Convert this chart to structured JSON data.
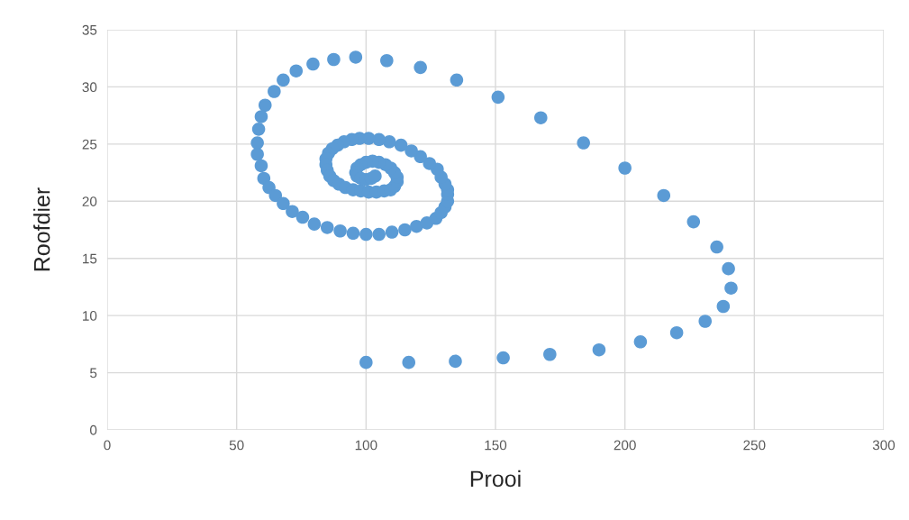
{
  "chart_data": {
    "type": "scatter",
    "xlabel": "Prooi",
    "ylabel": "Roofdier",
    "xlim": [
      0,
      300
    ],
    "xticks": [
      0,
      50,
      100,
      150,
      200,
      250,
      300
    ],
    "ylim": [
      0,
      35
    ],
    "yticks": [
      0,
      5,
      10,
      15,
      20,
      25,
      30,
      35
    ],
    "grid": true,
    "marker": "circle",
    "series": [
      {
        "color": "#5b9bd5",
        "x": [
          100,
          116.5,
          134.5,
          153,
          171,
          190,
          206,
          220,
          231,
          238,
          241,
          240,
          235.5,
          226.5,
          215,
          200,
          184,
          167.5,
          151,
          135,
          121,
          108,
          96,
          87.5,
          79.5,
          73,
          68,
          64.5,
          61,
          59.5,
          58.5,
          58,
          58,
          59.5,
          60.5,
          62.5,
          65,
          68,
          71.5,
          75.5,
          80,
          85,
          90,
          95,
          100,
          105,
          110,
          115,
          119.5,
          123.5,
          127,
          129,
          130.5,
          131.5,
          131.5,
          131.5,
          130.5,
          129,
          127.5,
          124.5,
          121,
          117.5,
          113.5,
          109,
          105,
          101,
          97.5,
          94.5,
          91.5,
          89,
          87,
          85.5,
          84.5,
          84.5,
          85,
          86,
          87.5,
          89.5,
          92,
          95,
          98,
          101,
          104,
          107,
          109.5,
          111,
          112,
          112,
          111,
          109.5,
          107.5,
          105,
          102.5,
          100,
          98,
          96.5,
          96,
          96.5,
          98,
          100,
          102,
          103.5
        ],
        "values": [
          5.9,
          5.9,
          6.0,
          6.3,
          6.6,
          7.0,
          7.7,
          8.5,
          9.5,
          10.8,
          12.4,
          14.1,
          16.0,
          18.2,
          20.5,
          22.9,
          25.1,
          27.3,
          29.1,
          30.6,
          31.7,
          32.3,
          32.6,
          32.4,
          32.0,
          31.4,
          30.6,
          29.6,
          28.4,
          27.4,
          26.3,
          25.1,
          24.1,
          23.1,
          22.0,
          21.2,
          20.5,
          19.8,
          19.1,
          18.6,
          18.0,
          17.7,
          17.4,
          17.2,
          17.1,
          17.1,
          17.3,
          17.5,
          17.8,
          18.1,
          18.5,
          19.0,
          19.5,
          20.0,
          20.6,
          21.0,
          21.5,
          22.1,
          22.8,
          23.3,
          23.9,
          24.4,
          24.9,
          25.2,
          25.4,
          25.5,
          25.5,
          25.4,
          25.2,
          24.9,
          24.6,
          24.2,
          23.7,
          23.2,
          22.7,
          22.2,
          21.8,
          21.5,
          21.2,
          21.0,
          20.9,
          20.8,
          20.8,
          20.9,
          21.0,
          21.3,
          21.7,
          22.1,
          22.5,
          22.9,
          23.2,
          23.4,
          23.5,
          23.4,
          23.2,
          22.9,
          22.5,
          22.2,
          22.0,
          21.9,
          22.0,
          22.2
        ]
      }
    ]
  }
}
